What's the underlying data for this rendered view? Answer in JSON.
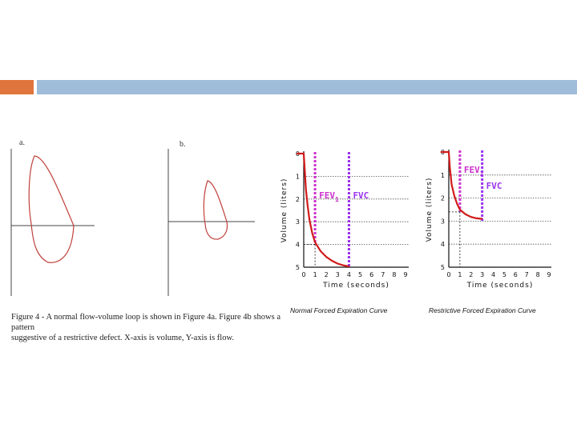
{
  "slide": {
    "accent_orange": "#e0753d",
    "accent_blue": "#9fbcd9"
  },
  "figure4": {
    "label_a": "a.",
    "label_b": "b.",
    "caption_line1": "Figure 4 - A normal flow-volume loop is shown in Figure 4a.  Figure 4b shows a pattern",
    "caption_line2": "suggestive of a restrictive defect.  X-axis is volume, Y-axis is flow."
  },
  "chart_data": [
    {
      "type": "line",
      "title": "Normal Forced Expiration Curve",
      "xlabel": "Time (seconds)",
      "ylabel": "Volume (liters)",
      "x_ticks": [
        "0",
        "1",
        "2",
        "3",
        "4",
        "5",
        "6",
        "7",
        "8",
        "9"
      ],
      "y_ticks": [
        "0",
        "1",
        "2",
        "3",
        "4",
        "5"
      ],
      "xlim": [
        0,
        9
      ],
      "ylim": [
        0,
        5
      ],
      "y_inverted": true,
      "series": [
        {
          "x": [
            -0.6,
            0,
            0.1,
            0.2,
            0.35,
            0.5,
            0.75,
            1,
            1.5,
            2,
            2.5,
            3,
            3.5,
            4
          ],
          "y": [
            0,
            0,
            0.8,
            1.6,
            2.3,
            2.9,
            3.5,
            3.9,
            4.3,
            4.55,
            4.72,
            4.84,
            4.92,
            4.97
          ],
          "color": "#d11a1a"
        }
      ],
      "markers": [
        {
          "label": "FEV1",
          "x": 1,
          "y": 4.0,
          "color": "#cc33cc"
        },
        {
          "label": "FVC",
          "x": 4,
          "y": 5.0,
          "color": "#9933ee"
        }
      ]
    },
    {
      "type": "line",
      "title": "Restrictive Forced Expiration Curve",
      "xlabel": "Time (seconds)",
      "ylabel": "Volume (liters)",
      "x_ticks": [
        "0",
        "1",
        "2",
        "3",
        "4",
        "5",
        "6",
        "7",
        "8",
        "9"
      ],
      "y_ticks": [
        "0",
        "1",
        "2",
        "3",
        "4",
        "5"
      ],
      "xlim": [
        0,
        9
      ],
      "ylim": [
        0,
        5
      ],
      "y_inverted": true,
      "series": [
        {
          "x": [
            -0.7,
            0,
            0.1,
            0.25,
            0.5,
            0.75,
            1,
            1.5,
            2,
            2.5,
            3
          ],
          "y": [
            0,
            0,
            0.7,
            1.4,
            1.9,
            2.25,
            2.5,
            2.7,
            2.82,
            2.88,
            2.9
          ],
          "color": "#d11a1a"
        }
      ],
      "markers": [
        {
          "label": "FEV1",
          "x": 1,
          "y": 2.6,
          "color": "#cc33cc"
        },
        {
          "label": "FVC",
          "x": 3,
          "y": 3.0,
          "color": "#9933ee"
        }
      ]
    }
  ]
}
